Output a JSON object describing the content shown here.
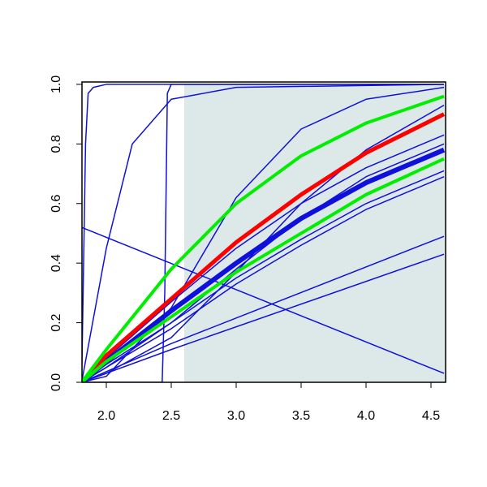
{
  "chart_data": {
    "type": "line",
    "xlim": [
      1.8125,
      4.6125
    ],
    "ylim": [
      0,
      1.008
    ],
    "xticks": [
      {
        "value": 2.0,
        "label": "2.0"
      },
      {
        "value": 2.5,
        "label": "2.5"
      },
      {
        "value": 3.0,
        "label": "3.0"
      },
      {
        "value": 3.5,
        "label": "3.5"
      },
      {
        "value": 4.0,
        "label": "4.0"
      },
      {
        "value": 4.5,
        "label": "4.5"
      }
    ],
    "yticks": [
      {
        "value": 0.0,
        "label": "0.0"
      },
      {
        "value": 0.2,
        "label": "0.2"
      },
      {
        "value": 0.4,
        "label": "0.4"
      },
      {
        "value": 0.6,
        "label": "0.6"
      },
      {
        "value": 0.8,
        "label": "0.8"
      },
      {
        "value": 1.0,
        "label": "1.0"
      }
    ],
    "shade": {
      "x": [
        2.6,
        4.6125
      ],
      "y": [
        0,
        1
      ],
      "color": "#dde9e9"
    },
    "series": [
      {
        "color": "#1010dd",
        "width": 1.5,
        "x": [
          1.81,
          1.81
        ],
        "values": [
          0,
          1
        ]
      },
      {
        "color": "#1010dd",
        "width": 1.5,
        "x": [
          1.81,
          1.84,
          1.86,
          1.9,
          2.0,
          4.6
        ],
        "values": [
          0,
          0.8,
          0.97,
          0.99,
          1,
          1
        ]
      },
      {
        "color": "#1010dd",
        "width": 1.5,
        "x": [
          1.81,
          2.0,
          2.2,
          2.5,
          3.0,
          4.6
        ],
        "values": [
          0,
          0.45,
          0.8,
          0.95,
          0.99,
          1
        ]
      },
      {
        "color": "#1010dd",
        "width": 1.5,
        "x": [
          1.81,
          2.43,
          2.45,
          2.47,
          2.5,
          4.6
        ],
        "values": [
          0,
          0,
          0.3,
          0.97,
          1,
          1
        ]
      },
      {
        "color": "#1010dd",
        "width": 1.5,
        "x": [
          1.81,
          2.0,
          2.5,
          3.0,
          3.5,
          4.0,
          4.6
        ],
        "values": [
          0,
          0.02,
          0.25,
          0.62,
          0.85,
          0.95,
          0.99
        ]
      },
      {
        "color": "#1010dd",
        "width": 1.5,
        "x": [
          1.81,
          2.0,
          2.5,
          3.0,
          3.5,
          4.0,
          4.6
        ],
        "values": [
          0,
          0.03,
          0.15,
          0.37,
          0.6,
          0.78,
          0.93
        ]
      },
      {
        "color": "#1010dd",
        "width": 1.5,
        "x": [
          1.81,
          2.0,
          2.5,
          3.0,
          3.5,
          4.0,
          4.6
        ],
        "values": [
          0,
          0.08,
          0.27,
          0.45,
          0.6,
          0.72,
          0.83
        ]
      },
      {
        "color": "#1010dd",
        "width": 1.5,
        "x": [
          1.81,
          2.0,
          2.5,
          3.0,
          3.5,
          4.0,
          4.6
        ],
        "values": [
          0,
          0.05,
          0.2,
          0.38,
          0.55,
          0.69,
          0.8
        ]
      },
      {
        "color": "#1010dd",
        "width": 6,
        "x": [
          1.81,
          2.0,
          2.5,
          3.0,
          3.5,
          4.0,
          4.6
        ],
        "values": [
          0,
          0.07,
          0.24,
          0.4,
          0.55,
          0.67,
          0.78
        ]
      },
      {
        "color": "#1010dd",
        "width": 1.5,
        "x": [
          1.81,
          2.0,
          2.5,
          3.0,
          3.5,
          4.0,
          4.6
        ],
        "values": [
          0,
          0.06,
          0.2,
          0.35,
          0.48,
          0.6,
          0.71
        ]
      },
      {
        "color": "#1010dd",
        "width": 1.5,
        "x": [
          1.81,
          2.0,
          2.5,
          3.0,
          3.5,
          4.0,
          4.6
        ],
        "values": [
          0,
          0.05,
          0.18,
          0.33,
          0.46,
          0.58,
          0.69
        ]
      },
      {
        "color": "#1010dd",
        "width": 1.5,
        "x": [
          1.81,
          4.6
        ],
        "values": [
          0.52,
          0.03
        ]
      },
      {
        "color": "#1010dd",
        "width": 1.5,
        "x": [
          1.81,
          2.5,
          4.6
        ],
        "values": [
          0,
          0.13,
          0.49
        ]
      },
      {
        "color": "#1010dd",
        "width": 1.5,
        "x": [
          1.81,
          2.5,
          4.6
        ],
        "values": [
          0,
          0.11,
          0.43
        ]
      },
      {
        "color": "#ff0000",
        "width": 5,
        "x": [
          1.81,
          2.0,
          2.5,
          3.0,
          3.5,
          4.0,
          4.6
        ],
        "values": [
          0,
          0.09,
          0.28,
          0.47,
          0.63,
          0.77,
          0.9
        ]
      },
      {
        "color": "#00ee00",
        "width": 4,
        "x": [
          1.81,
          2.0,
          2.5,
          3.0,
          3.5,
          4.0,
          4.6
        ],
        "values": [
          0,
          0.11,
          0.38,
          0.6,
          0.76,
          0.87,
          0.96
        ]
      },
      {
        "color": "#00ee00",
        "width": 4,
        "x": [
          1.81,
          2.0,
          2.5,
          3.0,
          3.5,
          4.0,
          4.6
        ],
        "values": [
          0,
          0.07,
          0.22,
          0.37,
          0.5,
          0.63,
          0.75
        ]
      }
    ]
  }
}
